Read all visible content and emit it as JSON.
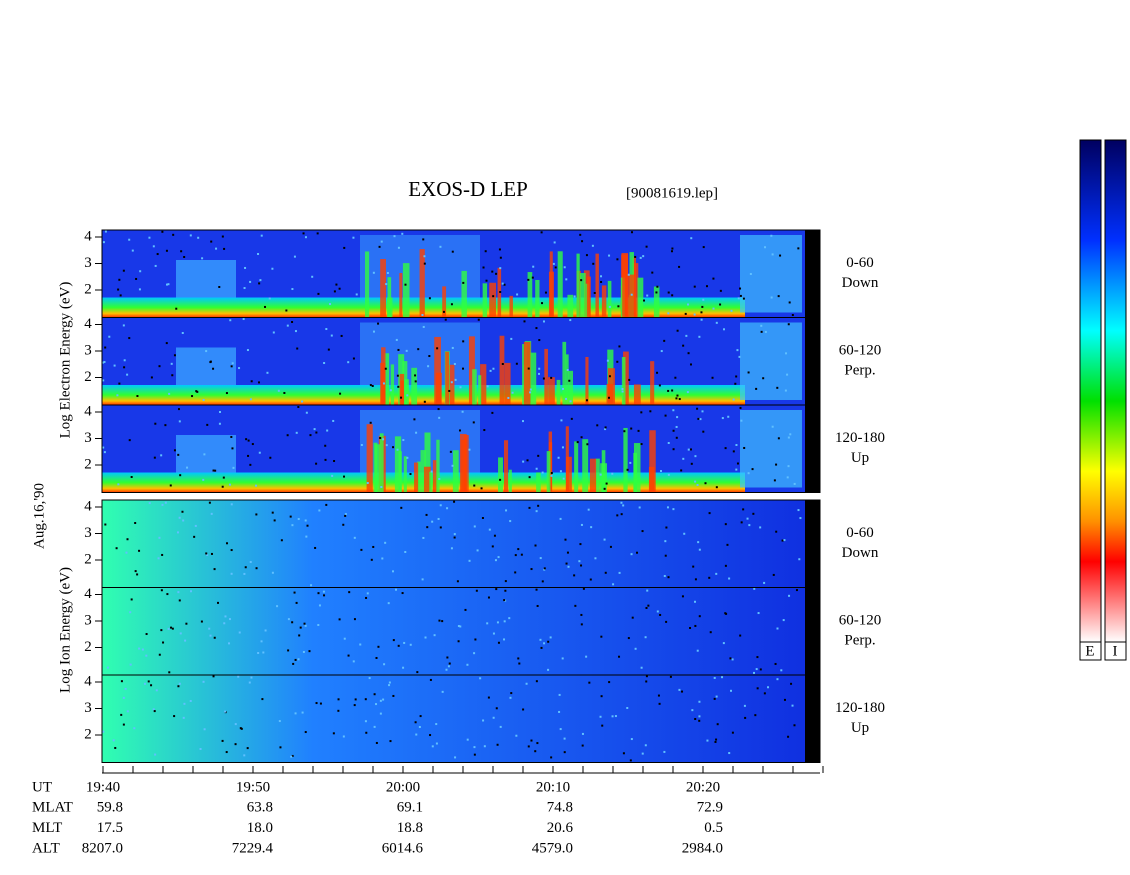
{
  "header": {
    "title": "EXOS-D LEP",
    "file": "[90081619.lep]"
  },
  "electron_axis_label": "Log Electron Energy (eV)",
  "ion_axis_label": "Log Ion Energy (eV)",
  "date": "Aug.16,'90",
  "yticks": [
    4,
    3,
    2
  ],
  "panels": [
    {
      "angle": "0-60",
      "direction": "Down"
    },
    {
      "angle": "60-120",
      "direction": "Perp."
    },
    {
      "angle": "120-180",
      "direction": "Up"
    },
    {
      "angle": "0-60",
      "direction": "Down"
    },
    {
      "angle": "60-120",
      "direction": "Perp."
    },
    {
      "angle": "120-180",
      "direction": "Up"
    }
  ],
  "time_table": [
    {
      "name": "UT",
      "values": [
        "19:40",
        "19:50",
        "20:00",
        "20:10",
        "20:20"
      ]
    },
    {
      "name": "MLAT",
      "values": [
        "59.8",
        "63.8",
        "69.1",
        "74.8",
        "72.9"
      ]
    },
    {
      "name": "MLT",
      "values": [
        "17.5",
        "18.0",
        "18.8",
        "20.6",
        "0.5"
      ]
    },
    {
      "name": "ALT",
      "values": [
        "8207.0",
        "7229.4",
        "6014.6",
        "4579.0",
        "2984.0"
      ]
    }
  ],
  "colorbars": [
    "E",
    "I"
  ]
}
